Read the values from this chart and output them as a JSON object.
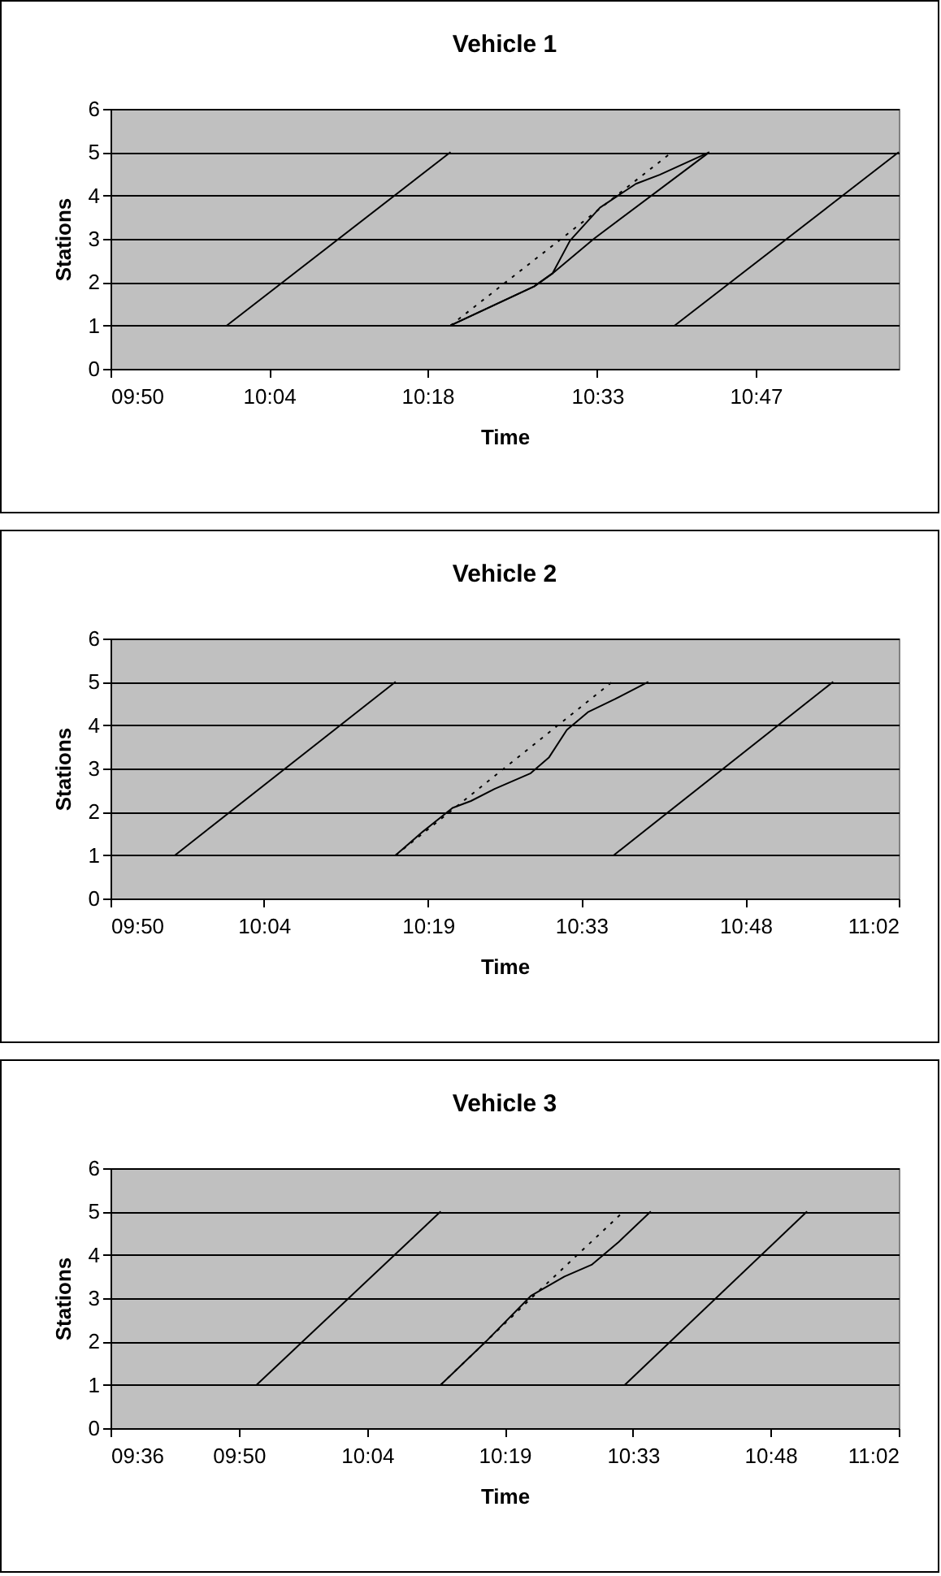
{
  "chart_data": [
    {
      "type": "line",
      "title": "Vehicle 1",
      "xlabel": "Time",
      "ylabel": "Stations",
      "grid": "y",
      "marker": "none",
      "xlim": [
        9.8333,
        10.994
      ],
      "xticks": [
        {
          "value": 9.8333,
          "label": "09:50"
        },
        {
          "value": 10.0667,
          "label": "10:04"
        },
        {
          "value": 10.3,
          "label": "10:18"
        },
        {
          "value": 10.55,
          "label": "10:33"
        },
        {
          "value": 10.7833,
          "label": "10:47"
        }
      ],
      "ylim": [
        0,
        6
      ],
      "yticks": [
        0,
        1,
        2,
        3,
        4,
        5,
        6
      ],
      "series": [
        {
          "color": "#000000",
          "line_style": "solid",
          "x": [
            10.0045,
            10.334
          ],
          "values": [
            1,
            5
          ]
        },
        {
          "color": "#000000",
          "line_style": "solid",
          "x": [
            10.334,
            10.457,
            10.484,
            10.545,
            10.715
          ],
          "values": [
            1,
            1.9,
            2.2,
            3,
            5
          ]
        },
        {
          "color": "#000000",
          "line_style": "solid",
          "x": [
            10.334,
            10.457,
            10.484,
            10.51,
            10.554,
            10.607,
            10.642,
            10.715
          ],
          "values": [
            1,
            1.9,
            2.2,
            2.96,
            3.72,
            4.27,
            4.48,
            5
          ]
        },
        {
          "color": "#000000",
          "line_style": "dotted",
          "x": [
            10.334,
            10.66
          ],
          "values": [
            1,
            5
          ]
        },
        {
          "color": "#000000",
          "line_style": "solid",
          "x": [
            10.664,
            10.994
          ],
          "values": [
            1,
            5
          ]
        }
      ]
    },
    {
      "type": "line",
      "title": "Vehicle 2",
      "xlabel": "Time",
      "ylabel": "Stations",
      "grid": "y",
      "marker": "none",
      "xlim": [
        9.8333,
        11.0333
      ],
      "xticks": [
        {
          "value": 9.8333,
          "label": "09:50"
        },
        {
          "value": 10.0667,
          "label": "10:04"
        },
        {
          "value": 10.3167,
          "label": "10:19"
        },
        {
          "value": 10.55,
          "label": "10:33"
        },
        {
          "value": 10.8,
          "label": "10:48"
        },
        {
          "value": 11.0333,
          "label": "11:02"
        }
      ],
      "ylim": [
        0,
        6
      ],
      "yticks": [
        0,
        1,
        2,
        3,
        4,
        5,
        6
      ],
      "series": [
        {
          "color": "#000000",
          "line_style": "solid",
          "x": [
            9.9315,
            10.2673
          ],
          "values": [
            1,
            5
          ]
        },
        {
          "color": "#000000",
          "line_style": "solid",
          "x": [
            10.2673,
            10.3085,
            10.354,
            10.382,
            10.418,
            10.473,
            10.501,
            10.528,
            10.56,
            10.601,
            10.652
          ],
          "values": [
            1,
            1.54,
            2.09,
            2.25,
            2.53,
            2.89,
            3.26,
            3.89,
            4.3,
            4.6,
            5
          ]
        },
        {
          "color": "#000000",
          "line_style": "dotted",
          "x": [
            10.2673,
            10.354,
            10.597
          ],
          "values": [
            1,
            2.05,
            5
          ]
        },
        {
          "color": "#000000",
          "line_style": "solid",
          "x": [
            10.5995,
            10.9334
          ],
          "values": [
            1,
            5
          ]
        }
      ]
    },
    {
      "type": "line",
      "title": "Vehicle 3",
      "xlabel": "Time",
      "ylabel": "Stations",
      "grid": "y",
      "marker": "none",
      "xlim": [
        9.6,
        11.0333
      ],
      "xticks": [
        {
          "value": 9.6,
          "label": "09:36"
        },
        {
          "value": 9.8333,
          "label": "09:50"
        },
        {
          "value": 10.0667,
          "label": "10:04"
        },
        {
          "value": 10.3167,
          "label": "10:19"
        },
        {
          "value": 10.55,
          "label": "10:33"
        },
        {
          "value": 10.8,
          "label": "10:48"
        },
        {
          "value": 11.0333,
          "label": "11:02"
        }
      ],
      "ylim": [
        0,
        6
      ],
      "yticks": [
        0,
        1,
        2,
        3,
        4,
        5,
        6
      ],
      "series": [
        {
          "color": "#000000",
          "line_style": "solid",
          "x": [
            9.8656,
            10.2004
          ],
          "values": [
            1,
            5
          ]
        },
        {
          "color": "#000000",
          "line_style": "solid",
          "x": [
            10.2004,
            10.2827,
            10.365,
            10.4254,
            10.4748,
            10.5242,
            10.5824
          ],
          "values": [
            1,
            2,
            3.06,
            3.5,
            3.77,
            4.3,
            5
          ]
        },
        {
          "color": "#000000",
          "line_style": "dotted",
          "x": [
            10.2004,
            10.365,
            10.533
          ],
          "values": [
            1,
            3,
            5
          ]
        },
        {
          "color": "#000000",
          "line_style": "solid",
          "x": [
            10.5352,
            10.8666
          ],
          "values": [
            1,
            5
          ]
        }
      ]
    }
  ]
}
